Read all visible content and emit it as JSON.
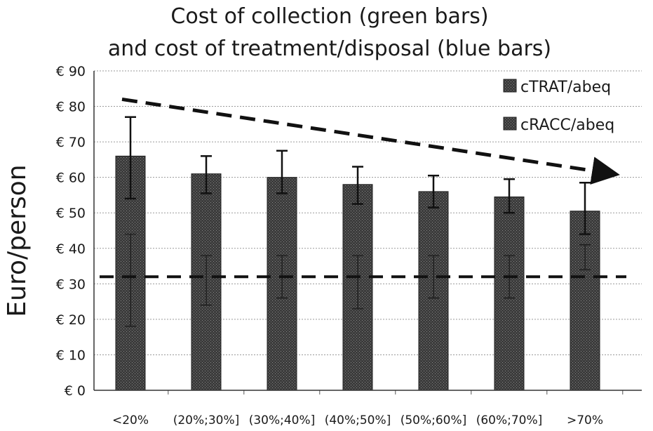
{
  "title_lines": [
    "Cost of collection (green bars)",
    "and cost of treatment/disposal (blue bars)"
  ],
  "chart_data": {
    "type": "bar",
    "title": "Cost of collection (green bars) and cost of treatment/disposal (blue bars)",
    "ylabel": "Euro/person",
    "xlabel": "",
    "ylim": [
      0,
      90
    ],
    "yticks": [
      "€ 0",
      "€ 10",
      "€ 20",
      "€ 30",
      "€ 40",
      "€ 50",
      "€ 60",
      "€ 70",
      "€ 80",
      "€ 90"
    ],
    "ytick_values": [
      0,
      10,
      20,
      30,
      40,
      50,
      60,
      70,
      80,
      90
    ],
    "grid": true,
    "legend_position": "top-right",
    "categories": [
      "<20%",
      "(20%;30%]",
      "(30%;40%]",
      "(40%;50%]",
      "(50%;60%]",
      "(60%;70%]",
      ">70%"
    ],
    "series": [
      {
        "name": "cTRAT/abeq",
        "values": [
          66,
          61,
          60,
          58,
          56,
          54.5,
          50.5
        ],
        "error_low": [
          54,
          55.5,
          55.5,
          52.5,
          51.5,
          50,
          44
        ],
        "error_high": [
          77,
          66,
          67.5,
          63,
          60.5,
          59.5,
          58.5
        ]
      },
      {
        "name": "cRACC/abeq",
        "values": [
          31,
          31,
          31,
          31,
          31,
          31,
          31
        ],
        "error_low": [
          18,
          24,
          26,
          23,
          26,
          26,
          34
        ],
        "error_high": [
          44,
          38,
          38,
          38,
          38,
          38,
          41
        ]
      }
    ],
    "annotations": [
      {
        "kind": "dashed-arrow",
        "from": {
          "category": "<20%",
          "y": 82
        },
        "to": {
          "category": ">70%",
          "y": 61
        }
      },
      {
        "kind": "dashed-hline",
        "y": 32
      }
    ]
  }
}
